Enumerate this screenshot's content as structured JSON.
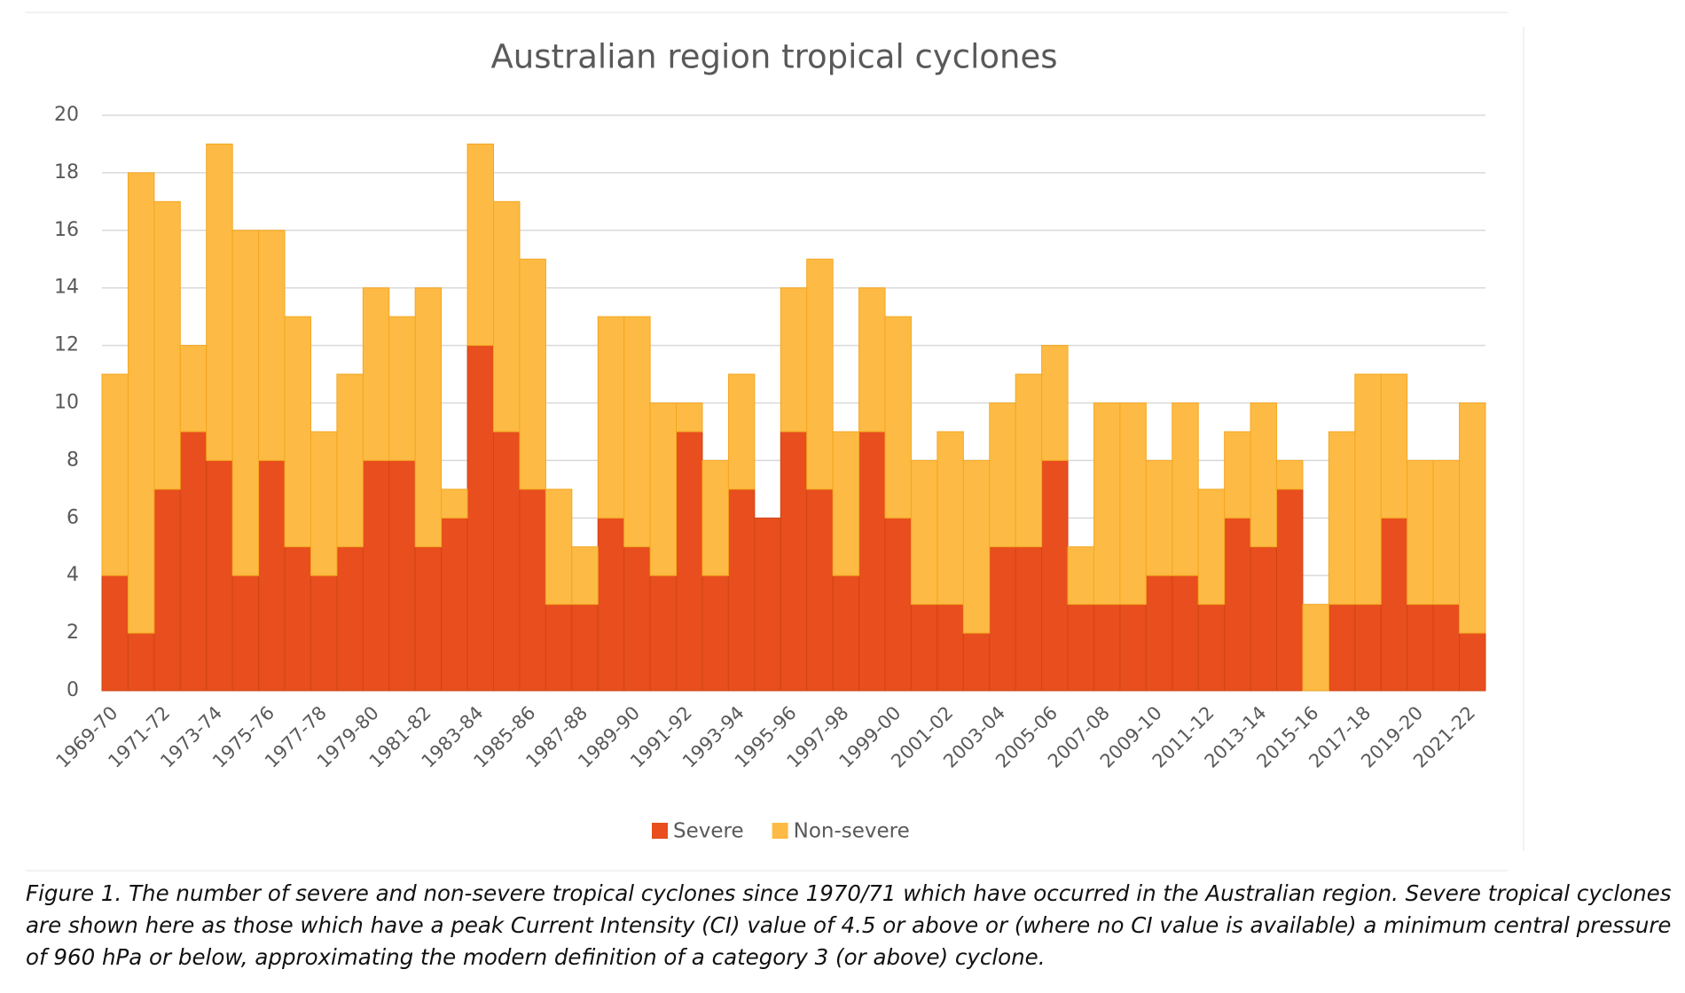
{
  "chart_data": {
    "type": "stacked_bar",
    "title": "Australian region tropical cyclones",
    "categories": [
      "1969-70",
      null,
      "1971-72",
      null,
      "1973-74",
      null,
      "1975-76",
      null,
      "1977-78",
      null,
      "1979-80",
      null,
      "1981-82",
      null,
      "1983-84",
      null,
      "1985-86",
      null,
      "1987-88",
      null,
      "1989-90",
      null,
      "1991-92",
      null,
      "1993-94",
      null,
      "1995-96",
      null,
      "1997-98",
      null,
      "1999-00",
      null,
      "2001-02",
      null,
      "2003-04",
      null,
      "2005-06",
      null,
      "2007-08",
      null,
      "2009-10",
      null,
      "2011-12",
      null,
      "2013-14",
      null,
      "2015-16",
      null,
      "2017-18",
      null,
      "2019-20",
      null,
      "2021-22"
    ],
    "series": [
      {
        "name": "Severe",
        "color": "#e84e1e",
        "values": [
          4,
          2,
          7,
          9,
          8,
          4,
          8,
          5,
          4,
          5,
          8,
          8,
          5,
          6,
          12,
          9,
          7,
          3,
          3,
          6,
          5,
          4,
          9,
          4,
          7,
          6,
          9,
          7,
          4,
          9,
          6,
          3,
          3,
          2,
          5,
          5,
          8,
          3,
          3,
          3,
          4,
          4,
          3,
          6,
          5,
          7,
          0,
          3,
          3,
          6,
          3,
          3,
          2
        ]
      },
      {
        "name": "Non-severe",
        "color": "#fdbb45",
        "values": [
          7,
          16,
          10,
          3,
          11,
          12,
          8,
          8,
          5,
          6,
          6,
          5,
          9,
          1,
          7,
          8,
          8,
          4,
          2,
          7,
          8,
          6,
          1,
          4,
          4,
          0,
          5,
          8,
          5,
          5,
          7,
          5,
          6,
          6,
          5,
          6,
          4,
          2,
          7,
          7,
          4,
          6,
          4,
          3,
          5,
          1,
          3,
          6,
          8,
          5,
          5,
          5,
          8
        ]
      }
    ],
    "ylim": [
      0,
      20
    ],
    "yticks": [
      0,
      2,
      4,
      6,
      8,
      10,
      12,
      14,
      16,
      18,
      20
    ],
    "grid": true,
    "legend": "bottom"
  },
  "caption": "Figure 1. The number of severe and non-severe tropical cyclones since 1970/71 which have occurred in the Australian region. Severe tropical cyclones are shown here as those which have a peak Current Intensity (CI) value of 4.5 or above or (where no CI value is available) a minimum central pressure of 960 hPa or below, approximating the modern definition of a category 3 (or above) cyclone."
}
